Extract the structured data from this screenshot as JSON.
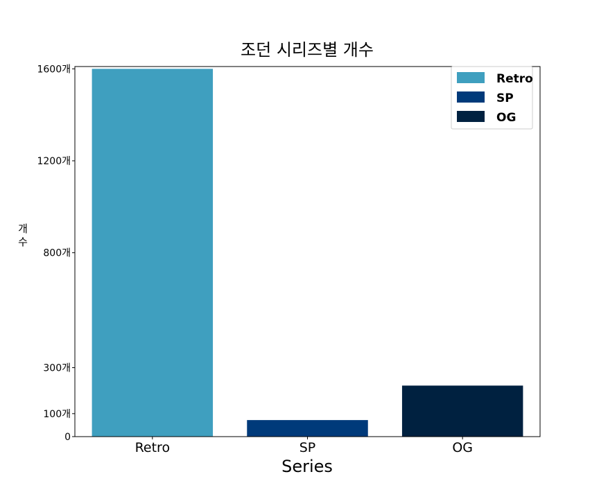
{
  "chart_data": {
    "type": "bar",
    "title": "조던 시리즈별 개수",
    "xlabel": "Series",
    "ylabel": "개수",
    "categories": [
      "Retro",
      "SP",
      "OG"
    ],
    "values": [
      1600,
      72,
      222
    ],
    "colors": [
      "#3f9fbf",
      "#003a7a",
      "#002140"
    ],
    "ylim": [
      0,
      1610
    ],
    "yticks": [
      0,
      100,
      300,
      800,
      1200,
      1600
    ],
    "ytick_labels": [
      "0",
      "100개",
      "300개",
      "800개",
      "1200개",
      "1600개"
    ],
    "legend": {
      "placement": "top-right",
      "entries": [
        "Retro",
        "SP",
        "OG"
      ]
    },
    "grid": false
  }
}
